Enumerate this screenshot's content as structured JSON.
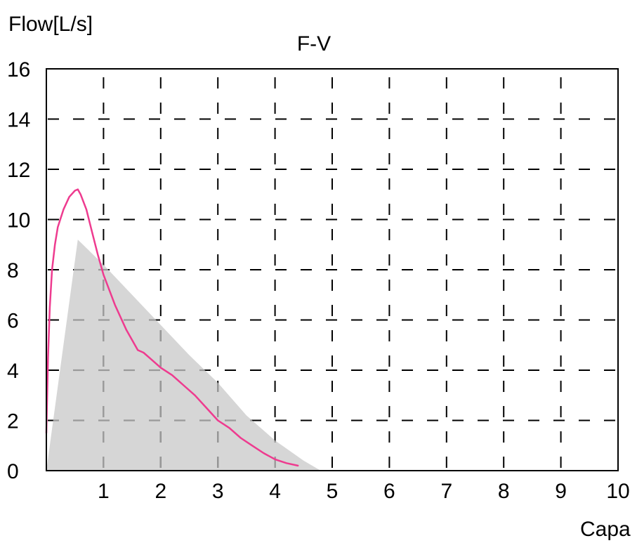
{
  "chart_data": {
    "type": "area",
    "title": "F-V",
    "ylabel": "Flow[L/s]",
    "xlabel": "Capa",
    "xlim": [
      0,
      10
    ],
    "ylim": [
      0,
      16
    ],
    "x_ticks": [
      1,
      2,
      3,
      4,
      5,
      6,
      7,
      8,
      9,
      10
    ],
    "y_ticks": [
      0,
      2,
      4,
      6,
      8,
      10,
      12,
      14,
      16
    ],
    "grid": true,
    "legend": "none",
    "colors": {
      "measured": "#ee3b8f",
      "predicted_fill": "#d6d6d6",
      "grid": "#000000",
      "frame": "#000000"
    },
    "series": [
      {
        "kind": "filled-area",
        "x": [
          0,
          0.55,
          1.0,
          1.5,
          2.0,
          2.5,
          3.0,
          3.5,
          4.0,
          4.5,
          4.8
        ],
        "y": [
          0,
          9.2,
          8.2,
          7.0,
          5.8,
          4.6,
          3.5,
          2.2,
          1.2,
          0.4,
          0
        ]
      },
      {
        "kind": "line",
        "x": [
          0,
          0.03,
          0.06,
          0.1,
          0.15,
          0.2,
          0.3,
          0.4,
          0.5,
          0.55,
          0.6,
          0.7,
          0.8,
          0.9,
          1.0,
          1.2,
          1.4,
          1.6,
          1.7,
          1.8,
          2.0,
          2.2,
          2.4,
          2.6,
          2.8,
          3.0,
          3.2,
          3.4,
          3.6,
          3.8,
          4.0,
          4.2,
          4.4
        ],
        "y": [
          1.5,
          4.5,
          6.5,
          8.0,
          9.0,
          9.7,
          10.4,
          10.9,
          11.15,
          11.2,
          11.0,
          10.4,
          9.5,
          8.6,
          7.8,
          6.6,
          5.6,
          4.8,
          4.7,
          4.5,
          4.1,
          3.8,
          3.4,
          3.0,
          2.5,
          2.0,
          1.7,
          1.3,
          1.0,
          0.7,
          0.45,
          0.3,
          0.2
        ]
      }
    ]
  }
}
